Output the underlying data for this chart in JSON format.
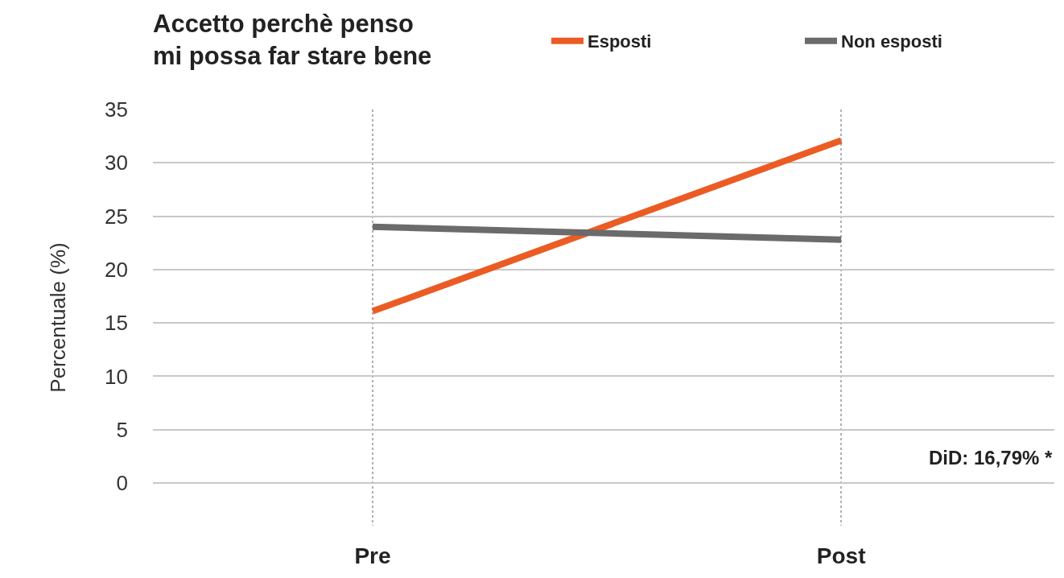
{
  "chart_data": {
    "type": "line",
    "title": "Accetto perchè penso\nmi possa far stare bene",
    "ylabel": "Percentuale (%)",
    "categories": [
      "Pre",
      "Post"
    ],
    "series": [
      {
        "name": "Esposti",
        "color": "#eb5c24",
        "values": [
          16.1,
          32.1
        ]
      },
      {
        "name": "Non esposti",
        "color": "#6b6b6b",
        "values": [
          24.0,
          22.8
        ]
      }
    ],
    "ylim": [
      -4,
      35
    ],
    "yticks": [
      0,
      5,
      10,
      15,
      20,
      25,
      30,
      35
    ],
    "grid": true,
    "legend": "top right",
    "marker": "none",
    "line_style": "solid",
    "annotations": [
      "DiD: 16,79% *"
    ]
  }
}
